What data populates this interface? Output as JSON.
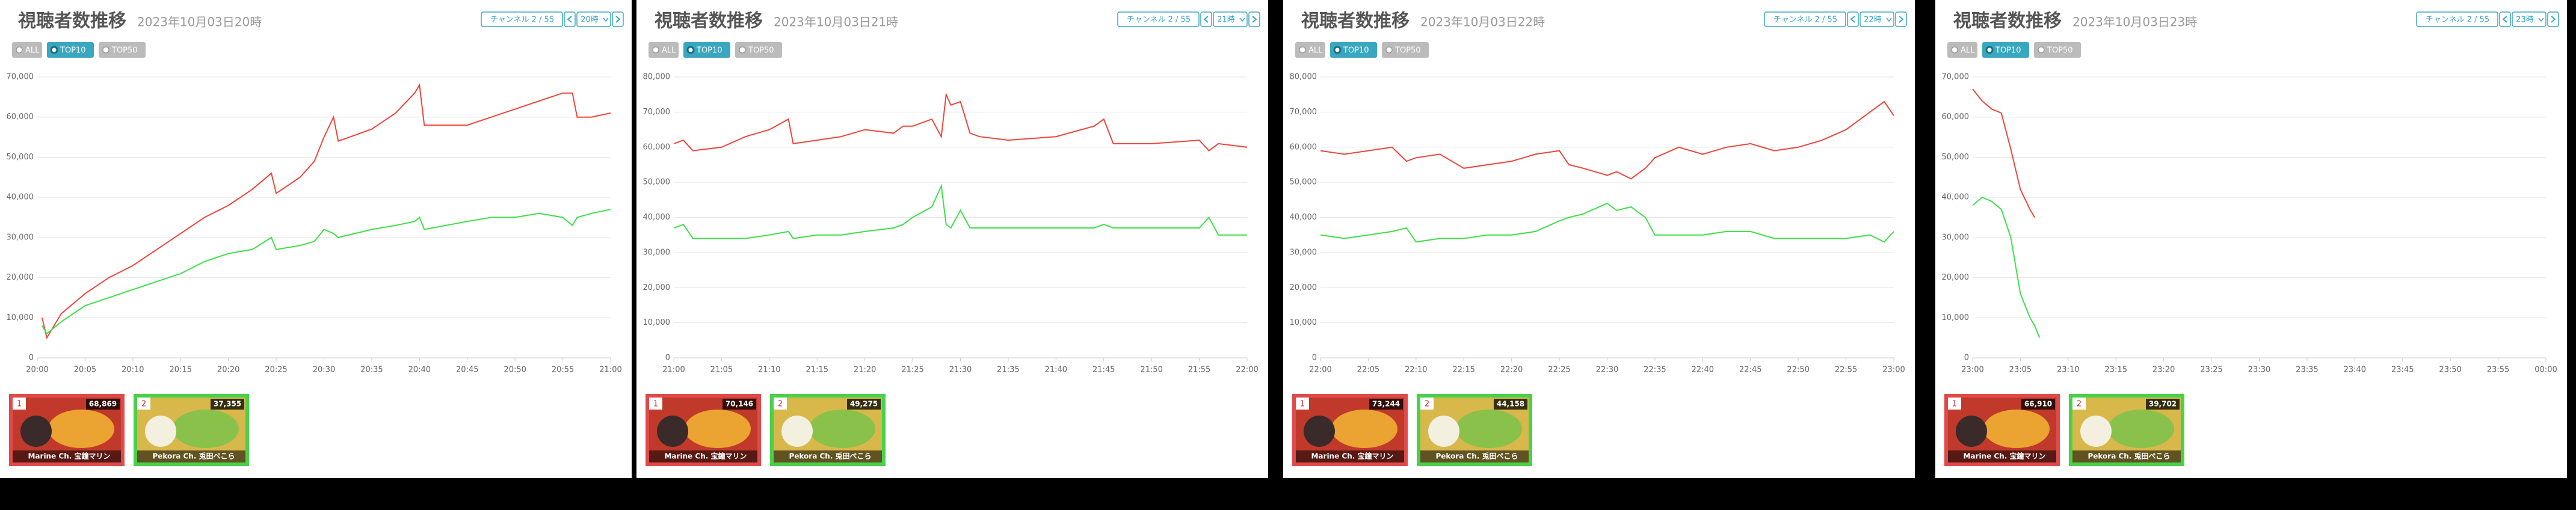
{
  "panels": [
    {
      "title": "視聴者数推移",
      "subtitle": "2023年10月03日20時",
      "filter": "チャンネル 2 / 55",
      "hour": "20時",
      "radios": [
        "ALL",
        "TOP10",
        "TOP50"
      ],
      "thumbs": [
        {
          "rank": 1,
          "count": "68,869",
          "name": "Marine Ch. 宝鐘マリン"
        },
        {
          "rank": 2,
          "count": "37,355",
          "name": "Pekora Ch. 兎田ぺこら"
        }
      ]
    },
    {
      "title": "視聴者数推移",
      "subtitle": "2023年10月03日21時",
      "filter": "チャンネル 2 / 55",
      "hour": "21時",
      "radios": [
        "ALL",
        "TOP10",
        "TOP50"
      ],
      "thumbs": [
        {
          "rank": 1,
          "count": "70,146",
          "name": "Marine Ch. 宝鐘マリン"
        },
        {
          "rank": 2,
          "count": "49,275",
          "name": "Pekora Ch. 兎田ぺこら"
        }
      ]
    },
    {
      "title": "視聴者数推移",
      "subtitle": "2023年10月03日22時",
      "filter": "チャンネル 2 / 55",
      "hour": "22時",
      "radios": [
        "ALL",
        "TOP10",
        "TOP50"
      ],
      "thumbs": [
        {
          "rank": 1,
          "count": "73,244",
          "name": "Marine Ch. 宝鐘マリン"
        },
        {
          "rank": 2,
          "count": "44,158",
          "name": "Pekora Ch. 兎田ぺこら"
        }
      ]
    },
    {
      "title": "視聴者数推移",
      "subtitle": "2023年10月03日23時",
      "filter": "チャンネル 2 / 55",
      "hour": "23時",
      "radios": [
        "ALL",
        "TOP10",
        "TOP50"
      ],
      "thumbs": [
        {
          "rank": 1,
          "count": "66,910",
          "name": "Marine Ch. 宝鐘マリン"
        },
        {
          "rank": 2,
          "count": "39,702",
          "name": "Pekora Ch. 兎田ぺこら"
        }
      ]
    }
  ],
  "chart_data": [
    {
      "type": "line",
      "grid": true,
      "xlim": [
        0,
        60
      ],
      "ylim": [
        0,
        70000
      ],
      "xticks": [
        {
          "value": 0,
          "label": "20:00"
        },
        {
          "value": 5,
          "label": "20:05"
        },
        {
          "value": 10,
          "label": "20:10"
        },
        {
          "value": 15,
          "label": "20:15"
        },
        {
          "value": 20,
          "label": "20:20"
        },
        {
          "value": 25,
          "label": "20:25"
        },
        {
          "value": 30,
          "label": "20:30"
        },
        {
          "value": 35,
          "label": "20:35"
        },
        {
          "value": 40,
          "label": "20:40"
        },
        {
          "value": 45,
          "label": "20:45"
        },
        {
          "value": 50,
          "label": "20:50"
        },
        {
          "value": 55,
          "label": "20:55"
        },
        {
          "value": 60,
          "label": "21:00"
        }
      ],
      "yticks": [
        0,
        {
          "value": 10000,
          "label": "10,000"
        },
        {
          "value": 20000,
          "label": "20,000"
        },
        {
          "value": 30000,
          "label": "30,000"
        },
        {
          "value": 40000,
          "label": "40,000"
        },
        {
          "value": 50000,
          "label": "50,000"
        },
        {
          "value": 60000,
          "label": "60,000"
        },
        {
          "value": 70000,
          "label": "70,000"
        }
      ],
      "x": [
        0.5,
        1,
        2.5,
        5,
        7.5,
        10,
        12.5,
        15,
        17.5,
        20,
        22.5,
        24.5,
        25,
        27.5,
        29,
        30,
        31,
        31.5,
        35,
        37.5,
        39.5,
        40,
        40.5,
        45,
        47.5,
        50,
        52.5,
        55,
        56,
        56.5,
        58,
        60
      ],
      "series": [
        {
          "color": "#f0453a",
          "values": [
            10000,
            5000,
            11000,
            16000,
            20000,
            23000,
            27000,
            31000,
            35000,
            38000,
            42000,
            46000,
            41000,
            45000,
            49000,
            55000,
            60000,
            54000,
            57000,
            61000,
            66000,
            68000,
            58000,
            58000,
            60000,
            62000,
            64000,
            66000,
            66000,
            60000,
            60000,
            61000
          ]
        },
        {
          "color": "#3ee04a",
          "values": [
            8000,
            6000,
            9000,
            13000,
            15000,
            17000,
            19000,
            21000,
            24000,
            26000,
            27000,
            30000,
            27000,
            28000,
            29000,
            32000,
            31000,
            30000,
            32000,
            33000,
            34000,
            35000,
            32000,
            34000,
            35000,
            35000,
            36000,
            35000,
            33000,
            35000,
            36000,
            37000
          ]
        }
      ]
    },
    {
      "type": "line",
      "grid": true,
      "xlim": [
        0,
        60
      ],
      "ylim": [
        0,
        80000
      ],
      "xticks": [
        {
          "value": 0,
          "label": "21:00"
        },
        {
          "value": 5,
          "label": "21:05"
        },
        {
          "value": 10,
          "label": "21:10"
        },
        {
          "value": 15,
          "label": "21:15"
        },
        {
          "value": 20,
          "label": "21:20"
        },
        {
          "value": 25,
          "label": "21:25"
        },
        {
          "value": 30,
          "label": "21:30"
        },
        {
          "value": 35,
          "label": "21:35"
        },
        {
          "value": 40,
          "label": "21:40"
        },
        {
          "value": 45,
          "label": "21:45"
        },
        {
          "value": 50,
          "label": "21:50"
        },
        {
          "value": 55,
          "label": "21:55"
        },
        {
          "value": 60,
          "label": "22:00"
        }
      ],
      "yticks": [
        0,
        {
          "value": 10000,
          "label": "10,000"
        },
        {
          "value": 20000,
          "label": "20,000"
        },
        {
          "value": 30000,
          "label": "30,000"
        },
        {
          "value": 40000,
          "label": "40,000"
        },
        {
          "value": 50000,
          "label": "50,000"
        },
        {
          "value": 60000,
          "label": "60,000"
        },
        {
          "value": 70000,
          "label": "70,000"
        },
        {
          "value": 80000,
          "label": "80,000"
        }
      ],
      "x": [
        0,
        1,
        2,
        5,
        7.5,
        10,
        12,
        12.5,
        15,
        17.5,
        20,
        23,
        24,
        25,
        27,
        28,
        28.5,
        29,
        30,
        31,
        32,
        35,
        40,
        44,
        45,
        46,
        50,
        55,
        56,
        57,
        60
      ],
      "series": [
        {
          "color": "#f0453a",
          "values": [
            61000,
            62000,
            59000,
            60000,
            63000,
            65000,
            68000,
            61000,
            62000,
            63000,
            65000,
            64000,
            66000,
            66000,
            68000,
            63000,
            75000,
            72000,
            73000,
            64000,
            63000,
            62000,
            63000,
            66000,
            68000,
            61000,
            61000,
            62000,
            59000,
            61000,
            60000
          ]
        },
        {
          "color": "#3ee04a",
          "values": [
            37000,
            38000,
            34000,
            34000,
            34000,
            35000,
            36000,
            34000,
            35000,
            35000,
            36000,
            37000,
            38000,
            40000,
            43000,
            49000,
            38000,
            37000,
            42000,
            37000,
            37000,
            37000,
            37000,
            37000,
            38000,
            37000,
            37000,
            37000,
            40000,
            35000,
            35000
          ]
        }
      ]
    },
    {
      "type": "line",
      "grid": true,
      "xlim": [
        0,
        60
      ],
      "ylim": [
        0,
        80000
      ],
      "xticks": [
        {
          "value": 0,
          "label": "22:00"
        },
        {
          "value": 5,
          "label": "22:05"
        },
        {
          "value": 10,
          "label": "22:10"
        },
        {
          "value": 15,
          "label": "22:15"
        },
        {
          "value": 20,
          "label": "22:20"
        },
        {
          "value": 25,
          "label": "22:25"
        },
        {
          "value": 30,
          "label": "22:30"
        },
        {
          "value": 35,
          "label": "22:35"
        },
        {
          "value": 40,
          "label": "22:40"
        },
        {
          "value": 45,
          "label": "22:45"
        },
        {
          "value": 50,
          "label": "22:50"
        },
        {
          "value": 55,
          "label": "22:55"
        },
        {
          "value": 60,
          "label": "23:00"
        }
      ],
      "yticks": [
        0,
        {
          "value": 10000,
          "label": "10,000"
        },
        {
          "value": 20000,
          "label": "20,000"
        },
        {
          "value": 30000,
          "label": "30,000"
        },
        {
          "value": 40000,
          "label": "40,000"
        },
        {
          "value": 50000,
          "label": "50,000"
        },
        {
          "value": 60000,
          "label": "60,000"
        },
        {
          "value": 70000,
          "label": "70,000"
        },
        {
          "value": 80000,
          "label": "80,000"
        }
      ],
      "x": [
        0,
        2.5,
        5,
        7.5,
        9,
        10,
        12.5,
        15,
        17.5,
        20,
        22.5,
        25,
        26,
        27.5,
        30,
        31,
        32.5,
        34,
        35,
        37.5,
        40,
        42.5,
        45,
        47.5,
        50,
        52.5,
        55,
        57.5,
        59,
        60
      ],
      "series": [
        {
          "color": "#f0453a",
          "values": [
            59000,
            58000,
            59000,
            60000,
            56000,
            57000,
            58000,
            54000,
            55000,
            56000,
            58000,
            59000,
            55000,
            54000,
            52000,
            53000,
            51000,
            54000,
            57000,
            60000,
            58000,
            60000,
            61000,
            59000,
            60000,
            62000,
            65000,
            70000,
            73000,
            69000
          ]
        },
        {
          "color": "#3ee04a",
          "values": [
            35000,
            34000,
            35000,
            36000,
            37000,
            33000,
            34000,
            34000,
            35000,
            35000,
            36000,
            39000,
            40000,
            41000,
            44000,
            42000,
            43000,
            40000,
            35000,
            35000,
            35000,
            36000,
            36000,
            34000,
            34000,
            34000,
            34000,
            35000,
            33000,
            36000
          ]
        }
      ]
    },
    {
      "type": "line",
      "grid": true,
      "xlim": [
        0,
        60
      ],
      "ylim": [
        0,
        70000
      ],
      "xticks": [
        {
          "value": 0,
          "label": "23:00"
        },
        {
          "value": 5,
          "label": "23:05"
        },
        {
          "value": 10,
          "label": "23:10"
        },
        {
          "value": 15,
          "label": "23:15"
        },
        {
          "value": 20,
          "label": "23:20"
        },
        {
          "value": 25,
          "label": "23:25"
        },
        {
          "value": 30,
          "label": "23:30"
        },
        {
          "value": 35,
          "label": "23:35"
        },
        {
          "value": 40,
          "label": "23:40"
        },
        {
          "value": 45,
          "label": "23:45"
        },
        {
          "value": 50,
          "label": "23:50"
        },
        {
          "value": 55,
          "label": "23:55"
        },
        {
          "value": 60,
          "label": "00:00"
        }
      ],
      "yticks": [
        0,
        {
          "value": 10000,
          "label": "10,000"
        },
        {
          "value": 20000,
          "label": "20,000"
        },
        {
          "value": 30000,
          "label": "30,000"
        },
        {
          "value": 40000,
          "label": "40,000"
        },
        {
          "value": 50000,
          "label": "50,000"
        },
        {
          "value": 60000,
          "label": "60,000"
        },
        {
          "value": 70000,
          "label": "70,000"
        }
      ],
      "x": [
        0,
        1,
        2,
        3,
        4,
        5,
        6,
        6.5,
        7
      ],
      "series": [
        {
          "color": "#f0453a",
          "values": [
            67000,
            64000,
            62000,
            61000,
            52000,
            42000,
            37000,
            35000,
            null
          ]
        },
        {
          "color": "#3ee04a",
          "values": [
            38000,
            40000,
            39000,
            37000,
            30000,
            16000,
            10000,
            8000,
            5000
          ]
        }
      ]
    }
  ]
}
